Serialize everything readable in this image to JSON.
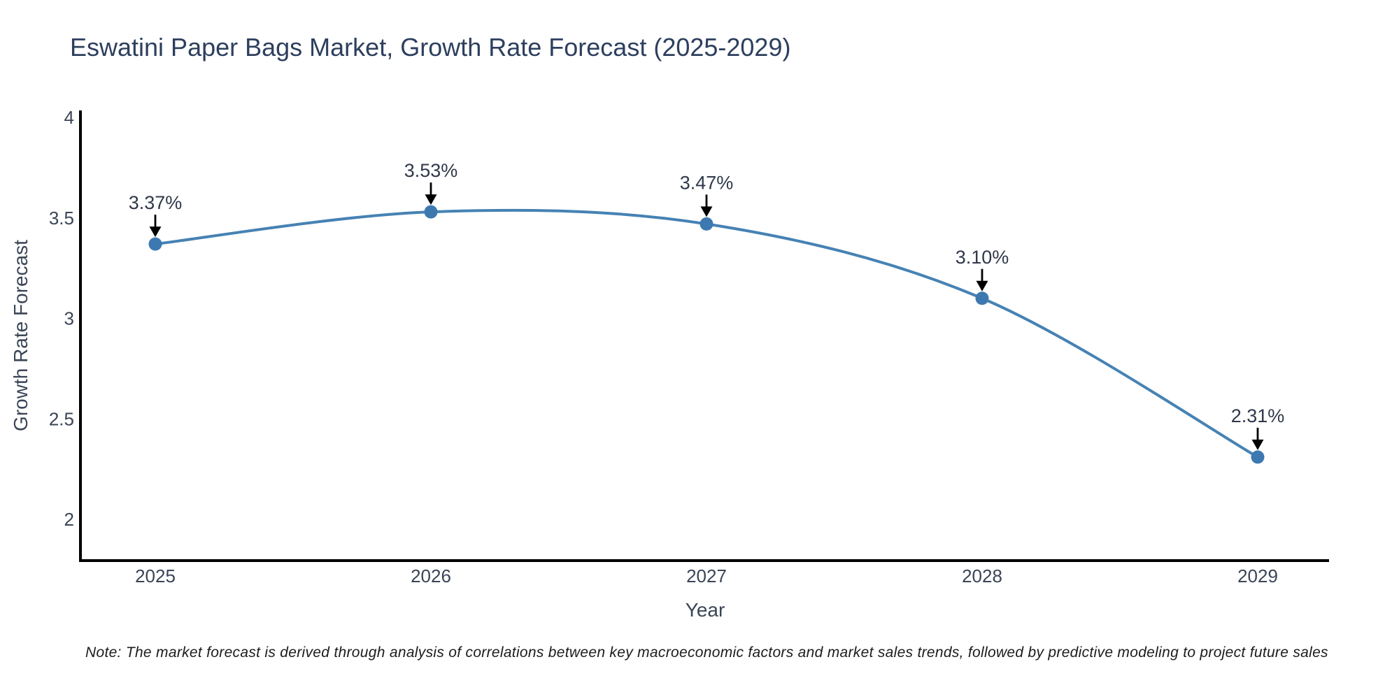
{
  "title": "Eswatini Paper Bags Market, Growth Rate Forecast (2025-2029)",
  "note": "Note: The market forecast is derived through analysis of correlations between key macroeconomic factors and market sales trends, followed by predictive modeling to project future sales",
  "chart_data": {
    "type": "line",
    "title": "Eswatini Paper Bags Market, Growth Rate Forecast (2025-2029)",
    "xlabel": "Year",
    "ylabel": "Growth Rate Forecast",
    "x": [
      2025,
      2026,
      2027,
      2028,
      2029
    ],
    "xtick_labels": [
      "2025",
      "2026",
      "2027",
      "2028",
      "2029"
    ],
    "series": [
      {
        "name": "Growth Rate Forecast",
        "values": [
          3.37,
          3.53,
          3.47,
          3.1,
          2.31
        ]
      }
    ],
    "point_labels": [
      "3.37%",
      "3.53%",
      "3.47%",
      "3.10%",
      "2.31%"
    ],
    "ylim": [
      1.79,
      4.03
    ],
    "yticks": [
      4,
      3.5,
      3,
      2.5,
      2
    ],
    "ytick_labels": [
      "4",
      "3.5",
      "3",
      "2.5",
      "2"
    ],
    "grid": false,
    "legend": "none",
    "curve": "spline",
    "line_color": "#4682b4",
    "marker_color": "#3d79b0",
    "axis_color": "#000000",
    "arrow_color": "#000000"
  },
  "colors": {
    "background": "#ffffff",
    "title_text": "#2d3f5e",
    "axis_title_text": "#3b4556",
    "tick_text": "#3b4556",
    "annotation_text": "#30394a",
    "note_text": "#1c1c1c"
  }
}
